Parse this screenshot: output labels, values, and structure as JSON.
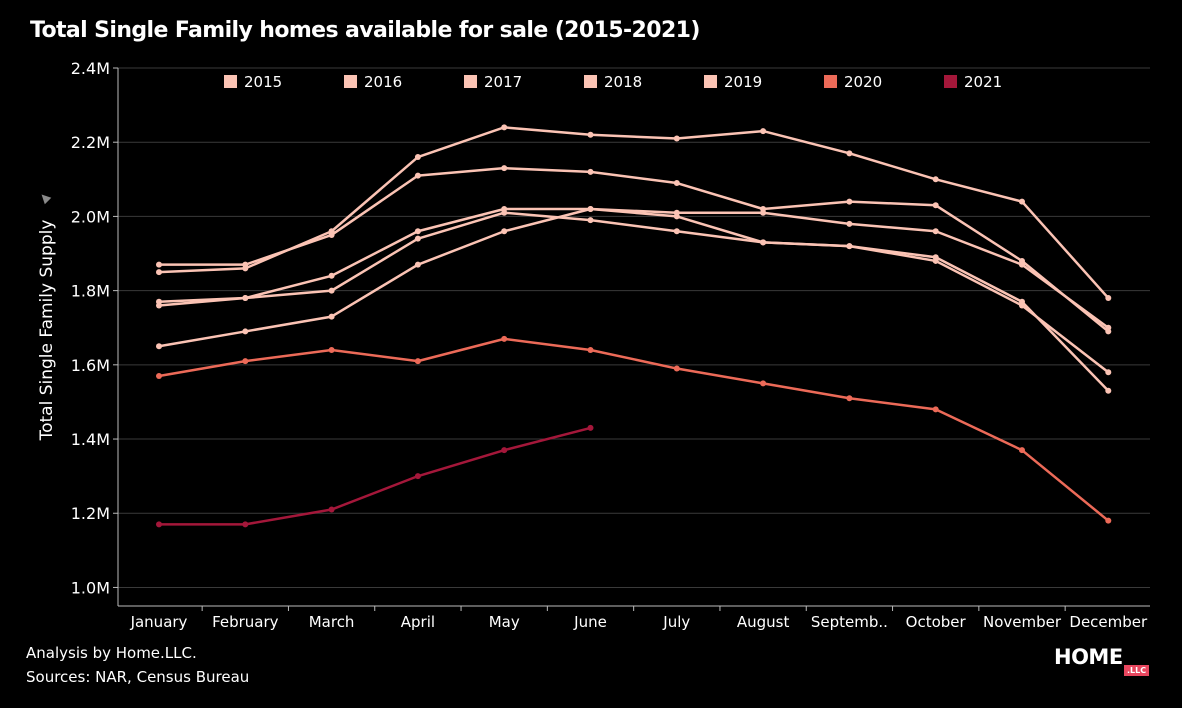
{
  "title": "Total Single Family homes available for sale (2015-2021)",
  "footer": {
    "analysis": "Analysis by Home.LLC.",
    "sources": "Sources: NAR, Census Bureau"
  },
  "logo": {
    "word": "HOME",
    "badge": ".LLC"
  },
  "chart_data": {
    "type": "line",
    "title": "Total Single Family homes available for sale (2015-2021)",
    "ylabel": "Total Single Family Supply",
    "xlabel": "",
    "categories": [
      "January",
      "February",
      "March",
      "April",
      "May",
      "June",
      "July",
      "August",
      "Septemb..",
      "October",
      "November",
      "December"
    ],
    "ylim": [
      0.95,
      2.4
    ],
    "yticks": [
      1.0,
      1.2,
      1.4,
      1.6,
      1.8,
      2.0,
      2.2,
      2.4
    ],
    "ytick_labels": [
      "1.0M",
      "1.2M",
      "1.4M",
      "1.6M",
      "1.8M",
      "2.0M",
      "2.2M",
      "2.4M"
    ],
    "units": "millions of homes",
    "grid": true,
    "legend_position": "top",
    "series": [
      {
        "name": "2015",
        "color": "#fbc3b4",
        "values": [
          1.76,
          1.78,
          1.8,
          1.94,
          2.01,
          1.99,
          1.96,
          1.93,
          1.92,
          1.88,
          1.76,
          1.58
        ]
      },
      {
        "name": "2016",
        "color": "#fbc3b4",
        "values": [
          1.65,
          1.69,
          1.73,
          1.87,
          1.96,
          2.02,
          2.01,
          2.01,
          1.98,
          1.96,
          1.87,
          1.7
        ]
      },
      {
        "name": "2017",
        "color": "#fbc3b4",
        "values": [
          1.77,
          1.78,
          1.84,
          1.96,
          2.02,
          2.02,
          2.0,
          1.93,
          1.92,
          1.89,
          1.77,
          1.53
        ]
      },
      {
        "name": "2018",
        "color": "#fbc3b4",
        "values": [
          1.87,
          1.87,
          1.95,
          2.11,
          2.13,
          2.12,
          2.09,
          2.02,
          2.04,
          2.03,
          1.88,
          1.69
        ]
      },
      {
        "name": "2019",
        "color": "#fbc3b4",
        "values": [
          1.85,
          1.86,
          1.96,
          2.16,
          2.24,
          2.22,
          2.21,
          2.23,
          2.17,
          2.1,
          2.04,
          1.78
        ]
      },
      {
        "name": "2020",
        "color": "#ec6a58",
        "values": [
          1.57,
          1.61,
          1.64,
          1.61,
          1.67,
          1.64,
          1.59,
          1.55,
          1.51,
          1.48,
          1.37,
          1.18
        ]
      },
      {
        "name": "2021",
        "color": "#a4173a",
        "values": [
          1.17,
          1.17,
          1.21,
          1.3,
          1.37,
          1.43,
          null,
          null,
          null,
          null,
          null,
          null
        ]
      }
    ]
  }
}
